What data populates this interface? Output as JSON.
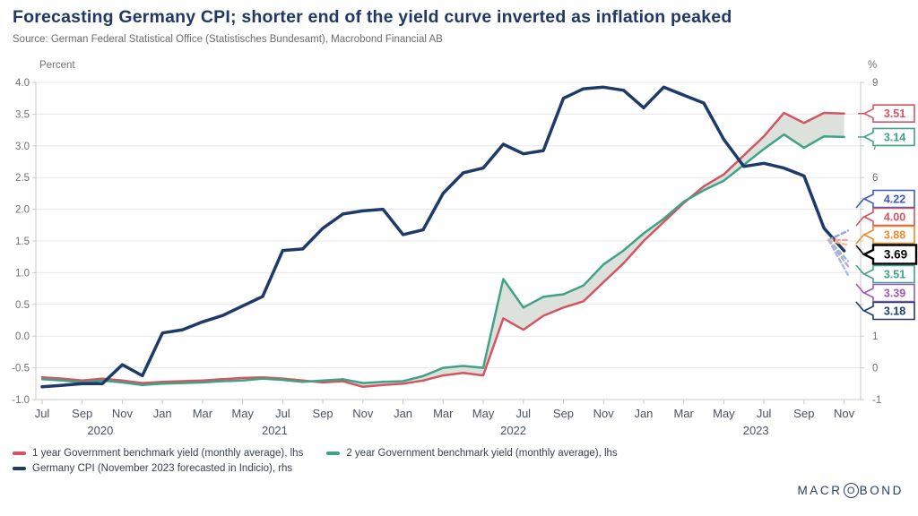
{
  "header": {
    "title": "Forecasting Germany CPI; shorter end of the yield curve inverted as inflation peaked",
    "source": "Source: German Federal Statistical Office (Statistisches Bundesamt), Macrobond Financial AB"
  },
  "logo": {
    "pre": "MACR",
    "o": "O",
    "post": "BOND"
  },
  "colors": {
    "navy": "#1e3a68",
    "red": "#d25561",
    "green": "#3fa287",
    "band": "#d9ded7",
    "grid": "#e7e7e7",
    "axis": "#c9c9c9",
    "tick_text": "#707070",
    "x_text": "#4a5362"
  },
  "legend": [
    {
      "label": "1 year Government benchmark yield (monthly average), lhs",
      "color": "#d25561"
    },
    {
      "label": "2 year Government benchmark yield (monthly average), lhs",
      "color": "#3fa287"
    },
    {
      "label": "Germany CPI (November 2023 forecasted in Indicio), rhs",
      "color": "#1e3a68"
    }
  ],
  "chart_data": {
    "type": "line",
    "title": "Forecasting Germany CPI; shorter end of the yield curve inverted as inflation peaked",
    "left_axis": {
      "label": "Percent",
      "min": -1.0,
      "max": 4.0,
      "tick_step": 0.5
    },
    "right_axis": {
      "label": "%",
      "min": -1,
      "max": 9,
      "tick_step": 1
    },
    "grid": true,
    "x_months": [
      "Jul 2020",
      "Aug 2020",
      "Sep 2020",
      "Oct 2020",
      "Nov 2020",
      "Dec 2020",
      "Jan 2021",
      "Feb 2021",
      "Mar 2021",
      "Apr 2021",
      "May 2021",
      "Jun 2021",
      "Jul 2021",
      "Aug 2021",
      "Sep 2021",
      "Oct 2021",
      "Nov 2021",
      "Dec 2021",
      "Jan 2022",
      "Feb 2022",
      "Mar 2022",
      "Apr 2022",
      "May 2022",
      "Jun 2022",
      "Jul 2022",
      "Aug 2022",
      "Sep 2022",
      "Oct 2022",
      "Nov 2022",
      "Dec 2022",
      "Jan 2023",
      "Feb 2023",
      "Mar 2023",
      "Apr 2023",
      "May 2023",
      "Jun 2023",
      "Jul 2023",
      "Aug 2023",
      "Sep 2023",
      "Oct 2023",
      "Nov 2023"
    ],
    "years": [
      {
        "label": "2020",
        "index": 2.9
      },
      {
        "label": "2021",
        "index": 11.6
      },
      {
        "label": "2022",
        "index": 23.5
      },
      {
        "label": "2023",
        "index": 35.6
      }
    ],
    "series": [
      {
        "name": "1 year Government benchmark yield (monthly average), lhs",
        "axis": "lhs",
        "color": "#d25561",
        "width": 2.5,
        "values": [
          -0.65,
          -0.67,
          -0.7,
          -0.67,
          -0.7,
          -0.74,
          -0.72,
          -0.71,
          -0.7,
          -0.68,
          -0.66,
          -0.65,
          -0.67,
          -0.7,
          -0.73,
          -0.71,
          -0.8,
          -0.77,
          -0.75,
          -0.7,
          -0.62,
          -0.58,
          -0.62,
          0.28,
          0.1,
          0.32,
          0.45,
          0.55,
          0.85,
          1.15,
          1.5,
          1.8,
          2.1,
          2.36,
          2.55,
          2.85,
          3.15,
          3.52,
          3.36,
          3.52,
          3.51
        ]
      },
      {
        "name": "2 year Government benchmark yield (monthly average), lhs",
        "axis": "lhs",
        "color": "#3fa287",
        "width": 2.5,
        "values": [
          -0.68,
          -0.7,
          -0.73,
          -0.7,
          -0.73,
          -0.77,
          -0.75,
          -0.74,
          -0.73,
          -0.71,
          -0.7,
          -0.67,
          -0.69,
          -0.72,
          -0.7,
          -0.68,
          -0.74,
          -0.72,
          -0.71,
          -0.63,
          -0.5,
          -0.47,
          -0.5,
          0.9,
          0.45,
          0.62,
          0.66,
          0.8,
          1.13,
          1.35,
          1.62,
          1.85,
          2.12,
          2.3,
          2.45,
          2.7,
          2.95,
          3.18,
          2.97,
          3.15,
          3.14
        ]
      },
      {
        "name": "Germany CPI (November 2023 forecasted in Indicio), rhs",
        "axis": "rhs",
        "color": "#1e3a68",
        "width": 3.5,
        "values": [
          -0.6,
          -0.55,
          -0.5,
          -0.5,
          0.1,
          -0.25,
          1.1,
          1.2,
          1.45,
          1.65,
          1.95,
          2.25,
          3.7,
          3.75,
          4.4,
          4.85,
          4.95,
          5.0,
          4.2,
          4.35,
          5.5,
          6.15,
          6.3,
          7.05,
          6.75,
          6.85,
          8.5,
          8.8,
          8.85,
          8.75,
          8.2,
          8.85,
          8.6,
          8.35,
          7.2,
          6.35,
          6.45,
          6.3,
          6.05,
          4.4,
          3.69
        ]
      }
    ],
    "band_between": [
      0,
      1
    ],
    "forecast_fan": {
      "from_month": "Oct 2023",
      "values": [
        4.22,
        4.0,
        3.88,
        3.51,
        3.39,
        3.18
      ],
      "colors": [
        "#93a5e1",
        "#f0a3a8",
        "#f7bd85",
        "#86c7b4",
        "#c2a3da",
        "#a9b6ea"
      ]
    },
    "end_flags": [
      {
        "value": "3.51",
        "num": 3.51,
        "axis": "lhs",
        "color": "#d25561"
      },
      {
        "value": "3.14",
        "num": 3.14,
        "axis": "lhs",
        "color": "#3fa287"
      }
    ],
    "forecast_flags": [
      {
        "value": "4.22",
        "color": "#4059c0",
        "emphasis": false
      },
      {
        "value": "4.00",
        "color": "#d25561",
        "emphasis": false
      },
      {
        "value": "3.88",
        "color": "#ef8b27",
        "emphasis": false
      },
      {
        "value": "3.69",
        "color": "#000000",
        "emphasis": true
      },
      {
        "value": "3.51",
        "color": "#3fa287",
        "emphasis": false
      },
      {
        "value": "3.39",
        "color": "#9c59b8",
        "emphasis": false
      },
      {
        "value": "3.18",
        "color": "#1f3c68",
        "emphasis": false
      }
    ]
  }
}
